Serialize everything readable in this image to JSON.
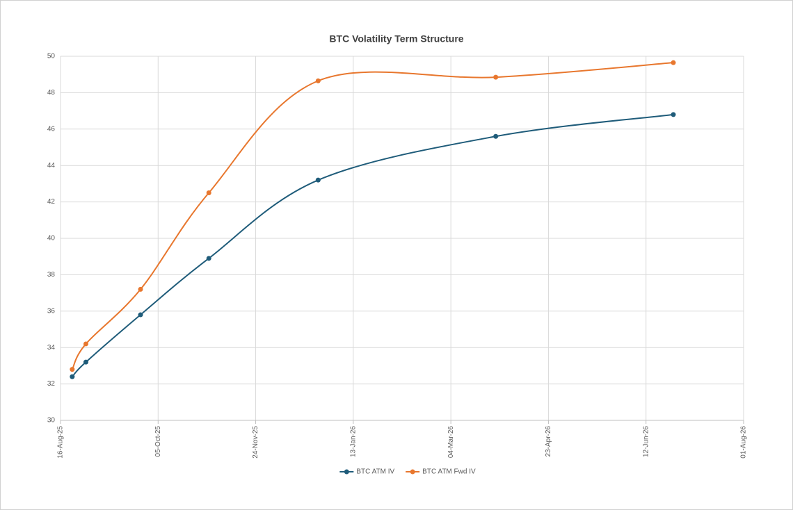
{
  "chart_data": {
    "type": "line",
    "title": "BTC Volatility Term Structure",
    "x": [
      "2025-08-22",
      "2025-08-29",
      "2025-09-26",
      "2025-10-31",
      "2025-12-26",
      "2026-03-27",
      "2026-06-26"
    ],
    "xlim": [
      "2025-08-16",
      "2026-08-01"
    ],
    "xticks": [
      {
        "value": "2025-08-16",
        "label": "16-Aug-25"
      },
      {
        "value": "2025-10-05",
        "label": "05-Oct-25"
      },
      {
        "value": "2025-11-24",
        "label": "24-Nov-25"
      },
      {
        "value": "2026-01-13",
        "label": "13-Jan-26"
      },
      {
        "value": "2026-03-04",
        "label": "04-Mar-26"
      },
      {
        "value": "2026-04-23",
        "label": "23-Apr-26"
      },
      {
        "value": "2026-06-12",
        "label": "12-Jun-26"
      },
      {
        "value": "2026-08-01",
        "label": "01-Aug-26"
      }
    ],
    "ylim": [
      30,
      50
    ],
    "yticks": [
      30,
      32,
      34,
      36,
      38,
      40,
      42,
      44,
      46,
      48,
      50
    ],
    "grid": true,
    "smooth": true,
    "legend": "bottom",
    "series": [
      {
        "name": "BTC ATM IV",
        "color": "#1f5c7a",
        "values": [
          32.4,
          33.2,
          35.8,
          38.9,
          43.2,
          45.6,
          46.8
        ]
      },
      {
        "name": "BTC ATM Fwd IV",
        "color": "#e8772e",
        "values": [
          32.8,
          34.2,
          37.2,
          42.5,
          48.65,
          48.85,
          49.65
        ]
      }
    ]
  }
}
